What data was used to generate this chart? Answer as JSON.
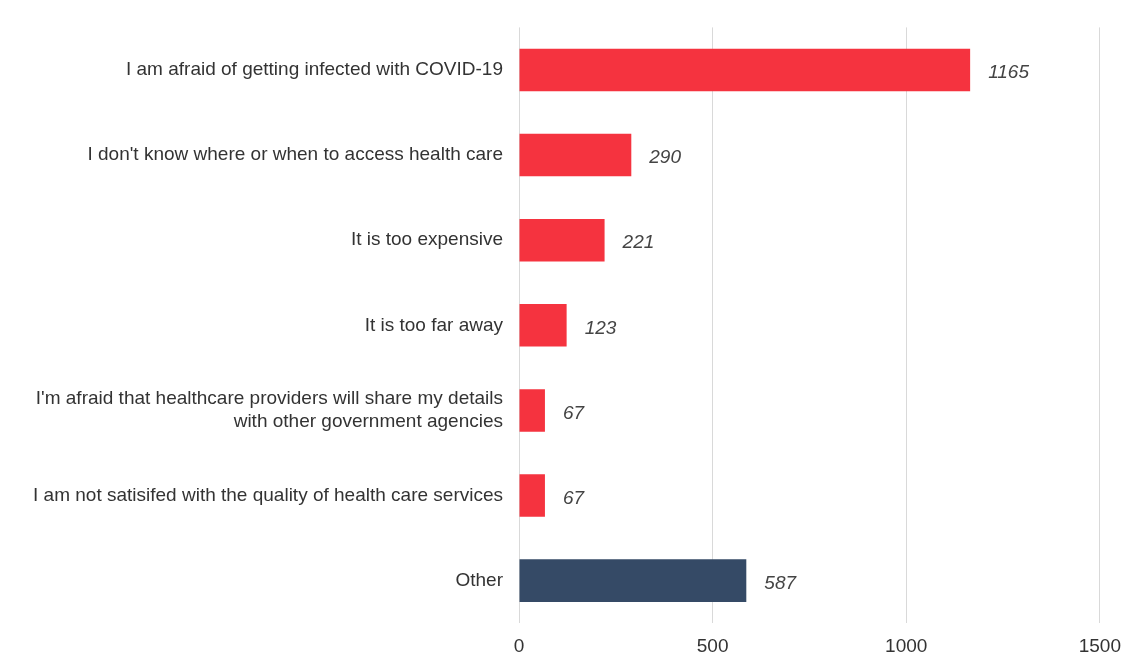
{
  "chart_data": {
    "type": "bar",
    "orientation": "horizontal",
    "categories": [
      "I am afraid of getting infected with COVID-19",
      "I don't know where or when to access health care",
      "It is too expensive",
      "It is too far away",
      "I'm afraid that healthcare providers will share my details with other government agencies",
      "I am not satisifed with the quality of health care services",
      "Other"
    ],
    "values": [
      1165,
      290,
      221,
      123,
      67,
      67,
      587
    ],
    "colors": [
      "#f5333f",
      "#f5333f",
      "#f5333f",
      "#f5333f",
      "#f5333f",
      "#f5333f",
      "#354a66"
    ],
    "xlim": [
      0,
      1500
    ],
    "xticks": [
      0,
      500,
      1000,
      1500
    ],
    "grid": "x",
    "data_labels": true,
    "legend": false
  }
}
